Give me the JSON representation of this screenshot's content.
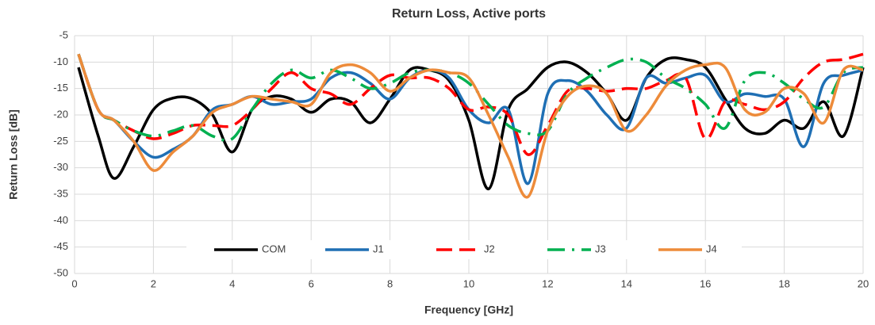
{
  "chart_data": {
    "type": "line",
    "title": "Return Loss, Active ports",
    "x_label": "Frequency [GHz]",
    "y_label": "Return Loss [dB]",
    "xlim": [
      0,
      20
    ],
    "xticks": [
      0,
      2,
      4,
      6,
      8,
      10,
      12,
      14,
      16,
      18,
      20
    ],
    "ylim": [
      -50,
      -5
    ],
    "yticks": [
      -50,
      -45,
      -40,
      -35,
      -30,
      -25,
      -20,
      -15,
      -10,
      -5
    ],
    "grid": true,
    "legend": "bottom",
    "x": [
      0.1,
      0.6,
      1,
      1.5,
      2,
      2.5,
      3,
      3.5,
      4,
      4.5,
      5,
      5.5,
      6,
      6.5,
      7,
      7.5,
      8,
      8.5,
      9,
      9.5,
      10,
      10.5,
      11,
      11.5,
      12,
      12.5,
      13,
      13.5,
      14,
      14.5,
      15,
      15.5,
      16,
      16.5,
      17,
      17.5,
      18,
      18.5,
      19,
      19.5,
      20
    ],
    "series": [
      {
        "name": "COM",
        "color": "#000000",
        "dash": "none",
        "values": [
          -11,
          -24,
          -32,
          -26,
          -19,
          -16.8,
          -17,
          -20,
          -27,
          -19,
          -16.5,
          -17,
          -19.5,
          -17,
          -17.5,
          -21.5,
          -17,
          -11.5,
          -11.5,
          -13.5,
          -21,
          -34,
          -19,
          -15,
          -11,
          -10,
          -12,
          -16,
          -21,
          -13,
          -9.5,
          -9.5,
          -11,
          -17,
          -22.5,
          -23.5,
          -21,
          -22.5,
          -17.5,
          -24,
          -11
        ]
      },
      {
        "name": "J1",
        "color": "#1f6fb4",
        "dash": "none",
        "values": [
          -8.5,
          -19,
          -21,
          -25,
          -28,
          -26.5,
          -24,
          -19,
          -18,
          -16.5,
          -18,
          -17.5,
          -17,
          -13,
          -12,
          -14,
          -17,
          -13,
          -11.5,
          -13,
          -19,
          -21.5,
          -19,
          -33,
          -16,
          -13.5,
          -15.5,
          -20,
          -22.5,
          -13,
          -14,
          -13,
          -12.5,
          -17.5,
          -16,
          -16.5,
          -17,
          -26,
          -14,
          -12.5,
          -11.5
        ]
      },
      {
        "name": "J2",
        "color": "#ff0000",
        "dash": "20,9",
        "values": [
          -8.5,
          -19,
          -21,
          -23,
          -24.5,
          -23.5,
          -22,
          -22,
          -22,
          -19,
          -15,
          -12,
          -15,
          -16,
          -18,
          -15,
          -12.5,
          -13,
          -13,
          -15,
          -19,
          -18.5,
          -20,
          -27.5,
          -22,
          -15.5,
          -15,
          -15.5,
          -15,
          -15,
          -13.5,
          -13,
          -24.5,
          -17.5,
          -18,
          -19,
          -17.5,
          -13,
          -10,
          -9.5,
          -8.5
        ]
      },
      {
        "name": "J3",
        "color": "#00b050",
        "dash": "22,9,3,9",
        "values": [
          -8.5,
          -19,
          -21,
          -23,
          -24,
          -23,
          -22,
          -24,
          -24.5,
          -19,
          -14,
          -11.5,
          -13,
          -11.5,
          -13,
          -15,
          -14,
          -12,
          -11.5,
          -12,
          -14,
          -18,
          -22,
          -23.5,
          -23,
          -16,
          -13,
          -11,
          -9.5,
          -10,
          -13,
          -15,
          -18,
          -22.5,
          -13.5,
          -12,
          -14,
          -17,
          -18.5,
          -12,
          -11
        ]
      },
      {
        "name": "J4",
        "color": "#ed8b3a",
        "dash": "none",
        "values": [
          -8.5,
          -19,
          -21,
          -25,
          -30.5,
          -27,
          -24,
          -19.5,
          -18,
          -16.5,
          -17,
          -17.5,
          -18,
          -12,
          -10.5,
          -12,
          -15.5,
          -13,
          -11.5,
          -12,
          -13,
          -20,
          -28,
          -35.5,
          -23,
          -16.5,
          -14.5,
          -16,
          -23,
          -20,
          -14.5,
          -11.5,
          -10.5,
          -11,
          -19,
          -19.5,
          -15,
          -16,
          -21.5,
          -11.5,
          -11.5
        ]
      }
    ]
  }
}
